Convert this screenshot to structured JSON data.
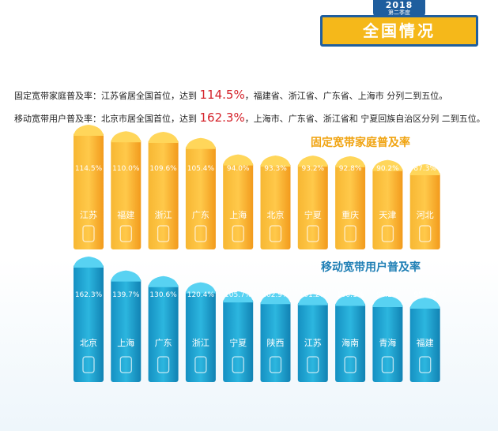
{
  "header": {
    "year": "2018",
    "season": "第二季度",
    "title": "全国情况"
  },
  "descriptions": [
    {
      "pre": "固定宽带家庭普及率：江苏省居全国首位，达到 ",
      "highlight": "114.5%",
      "post": "，福建省、浙江省、广东省、上海市 分列二到五位。"
    },
    {
      "pre": "移动宽带用户普及率：北京市居全国首位，达到 ",
      "highlight": "162.3%",
      "post": "，上海市、广东省、浙江省和 宁夏回族自治区分列 二到五位。"
    }
  ],
  "colors": {
    "fixed": "#f5a623",
    "fixed_light": "#ffd65a",
    "mobile": "#1fa3cf",
    "mobile_light": "#58d2f2",
    "accent": "#1f5e9e"
  },
  "chart_data": [
    {
      "type": "bar",
      "title": "固定宽带家庭普及率",
      "categories": [
        "江苏",
        "福建",
        "浙江",
        "广东",
        "上海",
        "北京",
        "宁夏",
        "重庆",
        "天津",
        "河北"
      ],
      "values": [
        114.5,
        110.0,
        109.6,
        105.4,
        94.0,
        93.3,
        93.2,
        92.8,
        90.2,
        87.3
      ],
      "labels": [
        "114.5%",
        "110.0%",
        "109.6%",
        "105.4%",
        "94.0%",
        "93.3%",
        "93.2%",
        "92.8%",
        "90.2%",
        "87.3%"
      ]
    },
    {
      "type": "bar",
      "title": "移动宽带用户普及率",
      "categories": [
        "北京",
        "上海",
        "广东",
        "浙江",
        "宁夏",
        "陕西",
        "江苏",
        "海南",
        "青海",
        "福建"
      ],
      "values": [
        162.3,
        139.7,
        130.6,
        120.4,
        105.7,
        102.9,
        101.2,
        100.1,
        98.2,
        95.6
      ],
      "labels": [
        "162.3%",
        "139.7%",
        "130.6%",
        "120.4%",
        "105.7%",
        "102.9%",
        "101.2%",
        "100.1%",
        "98.2%",
        "95.6%"
      ]
    }
  ]
}
